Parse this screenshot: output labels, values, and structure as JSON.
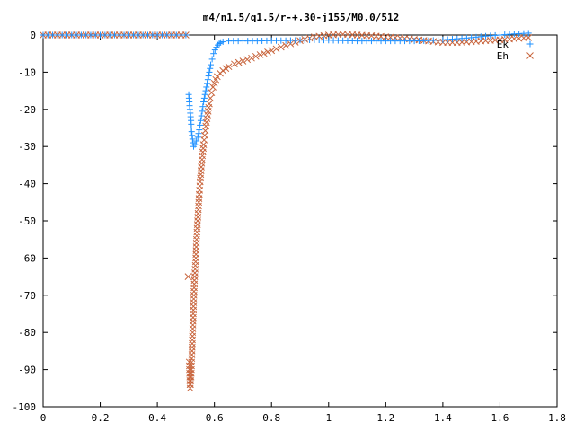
{
  "chart_data": {
    "type": "scatter",
    "title": "m4/n1.5/q1.5/r-+.30-j155/M0.0/512",
    "xlabel": "",
    "ylabel": "",
    "xlim": [
      0,
      1.8
    ],
    "ylim": [
      -100,
      0
    ],
    "x_ticks": [
      "0",
      "0.2",
      "0.4",
      "0.6",
      "0.8",
      "1",
      "1.2",
      "1.4",
      "1.6",
      "1.8"
    ],
    "y_ticks": [
      "0",
      "-10",
      "-20",
      "-30",
      "-40",
      "-50",
      "-60",
      "-70",
      "-80",
      "-90",
      "-100"
    ],
    "grid": false,
    "legend_position": "top-right",
    "series": [
      {
        "name": "Ek",
        "marker": "plus",
        "color": "#1e90ff",
        "points": [
          [
            0.0,
            0.0
          ],
          [
            0.05,
            0.0
          ],
          [
            0.1,
            0.0
          ],
          [
            0.15,
            0.0
          ],
          [
            0.2,
            0.0
          ],
          [
            0.25,
            0.0
          ],
          [
            0.3,
            0.0
          ],
          [
            0.35,
            0.0
          ],
          [
            0.4,
            0.0
          ],
          [
            0.45,
            0.0
          ],
          [
            0.5,
            0.0
          ],
          [
            0.51,
            -16.0
          ],
          [
            0.513,
            -19.0
          ],
          [
            0.518,
            -23.0
          ],
          [
            0.52,
            -26.0
          ],
          [
            0.525,
            -29.0
          ],
          [
            0.527,
            -30.0
          ],
          [
            0.532,
            -29.5
          ],
          [
            0.537,
            -28.5
          ],
          [
            0.542,
            -27.5
          ],
          [
            0.547,
            -25.5
          ],
          [
            0.552,
            -23.0
          ],
          [
            0.557,
            -20.5
          ],
          [
            0.562,
            -18.0
          ],
          [
            0.567,
            -16.0
          ],
          [
            0.572,
            -14.0
          ],
          [
            0.577,
            -12.0
          ],
          [
            0.582,
            -10.0
          ],
          [
            0.587,
            -8.0
          ],
          [
            0.592,
            -6.5
          ],
          [
            0.597,
            -5.0
          ],
          [
            0.602,
            -4.0
          ],
          [
            0.607,
            -3.3
          ],
          [
            0.612,
            -2.7
          ],
          [
            0.617,
            -2.3
          ],
          [
            0.622,
            -2.0
          ],
          [
            0.63,
            -1.8
          ],
          [
            0.65,
            -1.6
          ],
          [
            0.7,
            -1.6
          ],
          [
            0.75,
            -1.6
          ],
          [
            0.8,
            -1.5
          ],
          [
            0.85,
            -1.5
          ],
          [
            0.9,
            -1.4
          ],
          [
            0.95,
            -1.3
          ],
          [
            1.0,
            -1.4
          ],
          [
            1.05,
            -1.5
          ],
          [
            1.1,
            -1.6
          ],
          [
            1.15,
            -1.6
          ],
          [
            1.2,
            -1.6
          ],
          [
            1.25,
            -1.6
          ],
          [
            1.3,
            -1.6
          ],
          [
            1.35,
            -1.5
          ],
          [
            1.4,
            -1.3
          ],
          [
            1.45,
            -1.0
          ],
          [
            1.5,
            -0.7
          ],
          [
            1.55,
            -0.3
          ],
          [
            1.6,
            0.0
          ],
          [
            1.65,
            0.3
          ],
          [
            1.7,
            0.5
          ]
        ]
      },
      {
        "name": "Eh",
        "marker": "cross",
        "color": "#c8643c",
        "points": [
          [
            0.0,
            0.0
          ],
          [
            0.05,
            0.0
          ],
          [
            0.1,
            0.0
          ],
          [
            0.15,
            0.0
          ],
          [
            0.2,
            0.0
          ],
          [
            0.25,
            0.0
          ],
          [
            0.3,
            0.0
          ],
          [
            0.35,
            0.0
          ],
          [
            0.4,
            0.0
          ],
          [
            0.45,
            0.0
          ],
          [
            0.5,
            0.0
          ],
          [
            0.508,
            -65.0
          ],
          [
            0.512,
            -88.0
          ],
          [
            0.515,
            -95.0
          ],
          [
            0.518,
            -92.0
          ],
          [
            0.521,
            -86.0
          ],
          [
            0.524,
            -79.0
          ],
          [
            0.527,
            -72.0
          ],
          [
            0.53,
            -66.0
          ],
          [
            0.535,
            -60.0
          ],
          [
            0.538,
            -54.0
          ],
          [
            0.542,
            -49.0
          ],
          [
            0.546,
            -44.0
          ],
          [
            0.55,
            -39.5
          ],
          [
            0.554,
            -35.5
          ],
          [
            0.558,
            -32.5
          ],
          [
            0.562,
            -29.5
          ],
          [
            0.566,
            -27.0
          ],
          [
            0.57,
            -24.5
          ],
          [
            0.574,
            -22.5
          ],
          [
            0.578,
            -20.5
          ],
          [
            0.582,
            -18.5
          ],
          [
            0.586,
            -17.0
          ],
          [
            0.59,
            -15.5
          ],
          [
            0.595,
            -14.0
          ],
          [
            0.6,
            -13.0
          ],
          [
            0.605,
            -12.0
          ],
          [
            0.61,
            -11.2
          ],
          [
            0.62,
            -10.3
          ],
          [
            0.63,
            -9.6
          ],
          [
            0.64,
            -9.0
          ],
          [
            0.65,
            -8.5
          ],
          [
            0.67,
            -7.8
          ],
          [
            0.7,
            -7.0
          ],
          [
            0.73,
            -6.2
          ],
          [
            0.76,
            -5.3
          ],
          [
            0.8,
            -4.2
          ],
          [
            0.85,
            -2.8
          ],
          [
            0.9,
            -1.5
          ],
          [
            0.95,
            -0.5
          ],
          [
            1.0,
            0.0
          ],
          [
            1.05,
            0.2
          ],
          [
            1.1,
            0.0
          ],
          [
            1.15,
            -0.2
          ],
          [
            1.2,
            -0.5
          ],
          [
            1.25,
            -0.8
          ],
          [
            1.3,
            -1.2
          ],
          [
            1.35,
            -1.6
          ],
          [
            1.4,
            -2.0
          ],
          [
            1.45,
            -2.0
          ],
          [
            1.5,
            -1.8
          ],
          [
            1.55,
            -1.5
          ],
          [
            1.6,
            -1.3
          ],
          [
            1.65,
            -1.0
          ],
          [
            1.7,
            -0.7
          ]
        ]
      }
    ]
  }
}
